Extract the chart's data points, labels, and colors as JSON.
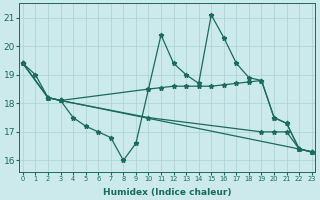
{
  "xlabel": "Humidex (Indice chaleur)",
  "xlim": [
    -0.3,
    23.3
  ],
  "ylim": [
    15.6,
    21.5
  ],
  "yticks": [
    16,
    17,
    18,
    19,
    20,
    21
  ],
  "xticks": [
    0,
    1,
    2,
    3,
    4,
    5,
    6,
    7,
    8,
    9,
    10,
    11,
    12,
    13,
    14,
    15,
    16,
    17,
    18,
    19,
    20,
    21,
    22,
    23
  ],
  "bg_color": "#cce9ec",
  "grid_color": "#aad0d6",
  "line_color": "#1a6b5a",
  "lines": [
    {
      "x": [
        0,
        1,
        2,
        3,
        4,
        5,
        6,
        7,
        8,
        9,
        10,
        11,
        12,
        13,
        14,
        15,
        16,
        17,
        18,
        19,
        20,
        21,
        22,
        23
      ],
      "y": [
        19.4,
        19.0,
        18.2,
        18.1,
        17.5,
        17.2,
        17.0,
        16.8,
        16.0,
        16.6,
        18.5,
        20.4,
        19.4,
        19.0,
        18.7,
        21.1,
        20.3,
        19.4,
        18.9,
        18.8,
        17.5,
        17.3,
        16.4,
        16.3
      ]
    },
    {
      "x": [
        0,
        2,
        3,
        10,
        11,
        12,
        13,
        14,
        15,
        16,
        17,
        18,
        19,
        20,
        21,
        22,
        23
      ],
      "y": [
        19.4,
        18.2,
        18.1,
        18.5,
        18.55,
        18.6,
        18.6,
        18.6,
        18.6,
        18.65,
        18.7,
        18.75,
        18.8,
        17.5,
        17.3,
        16.4,
        16.3
      ]
    },
    {
      "x": [
        0,
        2,
        3,
        10,
        19,
        20,
        21,
        22,
        23
      ],
      "y": [
        19.4,
        18.2,
        18.1,
        17.5,
        17.0,
        17.0,
        17.0,
        16.4,
        16.3
      ]
    },
    {
      "x": [
        0,
        2,
        3,
        22,
        23
      ],
      "y": [
        19.4,
        18.2,
        18.1,
        16.4,
        16.3
      ]
    }
  ]
}
